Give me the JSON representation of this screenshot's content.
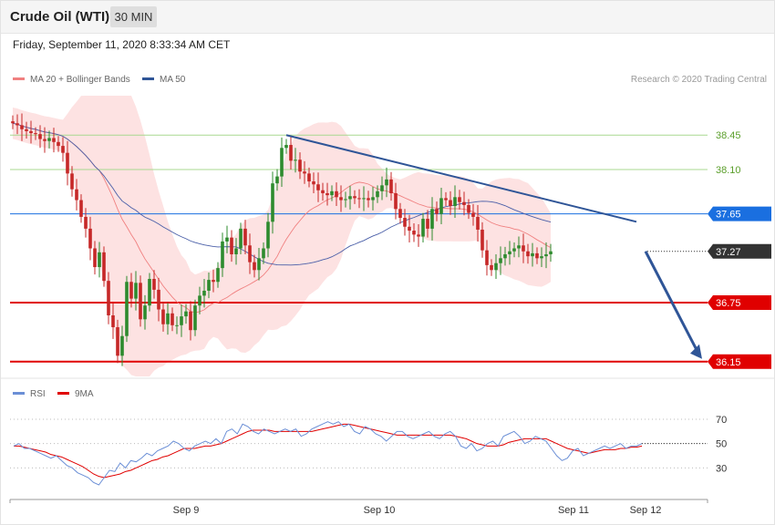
{
  "header": {
    "title": "Crude Oil (WTI)",
    "timeframe": "30 MIN",
    "timestamp": "Friday, September 11, 2020 8:33:34 AM CET"
  },
  "legend": {
    "ma20": "MA 20 + Bollinger Bands",
    "ma50": "MA 50",
    "credit": "Research © 2020 Trading Central",
    "rsi": "RSI",
    "ma9": "9MA"
  },
  "colors": {
    "bull": "#2e8b2e",
    "bear": "#c62828",
    "bollinger_fill": "#fde2e2",
    "ma20": "#f08080",
    "ma50": "#4a5fa8",
    "trendline": "#2f5597",
    "support": "#e00000",
    "pivot": "#1a6fe0",
    "resistance": "#a8d890",
    "last_price": "#333333",
    "rsi": "#6b8fd6",
    "rsi_ma": "#e00000"
  },
  "chart_data": [
    {
      "type": "candlestick",
      "title": "Crude Oil (WTI)",
      "timeframe": "30 MIN",
      "ylim": [
        36.0,
        38.85
      ],
      "x_ticks": [
        "Sep 9",
        "Sep 10",
        "Sep 11",
        "Sep 12"
      ],
      "last_price": 37.27,
      "levels": [
        {
          "label": "38.45",
          "value": 38.45,
          "kind": "resistance"
        },
        {
          "label": "38.10",
          "value": 38.1,
          "kind": "resistance"
        },
        {
          "label": "37.65",
          "value": 37.65,
          "kind": "pivot"
        },
        {
          "label": "37.27",
          "value": 37.27,
          "kind": "last"
        },
        {
          "label": "36.75",
          "value": 36.75,
          "kind": "support"
        },
        {
          "label": "36.15",
          "value": 36.15,
          "kind": "support"
        }
      ],
      "series": [
        {
          "name": "MA 20 + Bollinger Bands",
          "kind": "ma20_bollinger"
        },
        {
          "name": "MA 50",
          "kind": "ma50"
        }
      ],
      "closes": [
        38.57,
        38.55,
        38.51,
        38.49,
        38.47,
        38.46,
        38.41,
        38.39,
        38.42,
        38.38,
        38.34,
        38.27,
        38.06,
        37.9,
        37.79,
        37.62,
        37.5,
        37.3,
        37.11,
        37.26,
        36.97,
        36.62,
        36.5,
        36.21,
        36.41,
        36.96,
        36.79,
        36.95,
        36.58,
        36.72,
        36.99,
        36.88,
        36.68,
        36.53,
        36.64,
        36.52,
        36.52,
        36.61,
        36.66,
        36.47,
        36.72,
        36.82,
        36.87,
        36.98,
        36.96,
        37.1,
        37.37,
        37.41,
        37.24,
        37.3,
        37.5,
        37.33,
        37.16,
        37.08,
        37.2,
        37.3,
        37.57,
        37.96,
        38.03,
        38.32,
        38.35,
        38.19,
        38.2,
        38.08,
        38.06,
        37.98,
        37.95,
        37.89,
        37.86,
        37.84,
        37.88,
        37.82,
        37.79,
        37.8,
        37.83,
        37.81,
        37.8,
        37.81,
        37.79,
        37.82,
        37.88,
        37.94,
        38.0,
        37.86,
        37.7,
        37.61,
        37.52,
        37.48,
        37.44,
        37.42,
        37.6,
        37.5,
        37.7,
        37.65,
        37.81,
        37.79,
        37.73,
        37.82,
        37.77,
        37.74,
        37.66,
        37.62,
        37.49,
        37.28,
        37.13,
        37.08,
        37.15,
        37.2,
        37.24,
        37.27,
        37.3,
        37.33,
        37.27,
        37.22,
        37.25,
        37.2,
        37.22,
        37.24,
        37.27
      ]
    },
    {
      "type": "line",
      "name": "RSI",
      "ylim": [
        10,
        85
      ],
      "y_ticks": [
        30,
        50,
        70
      ],
      "x_ticks": [
        "Sep 9",
        "Sep 10",
        "Sep 11",
        "Sep 12"
      ],
      "series": [
        {
          "name": "RSI",
          "values": [
            48,
            50,
            46,
            46,
            44,
            42,
            40,
            38,
            40,
            36,
            32,
            30,
            26,
            24,
            22,
            18,
            16,
            22,
            28,
            27,
            34,
            30,
            36,
            35,
            38,
            42,
            40,
            44,
            46,
            48,
            52,
            50,
            46,
            44,
            48,
            50,
            52,
            50,
            54,
            50,
            60,
            62,
            58,
            66,
            64,
            60,
            58,
            62,
            60,
            58,
            60,
            62,
            60,
            62,
            56,
            58,
            62,
            64,
            66,
            68,
            66,
            68,
            64,
            66,
            60,
            58,
            64,
            62,
            58,
            56,
            52,
            56,
            60,
            60,
            56,
            54,
            56,
            58,
            60,
            56,
            54,
            58,
            60,
            56,
            48,
            46,
            50,
            44,
            46,
            50,
            52,
            48,
            56,
            58,
            60,
            56,
            50,
            52,
            56,
            54,
            52,
            46,
            40,
            36,
            38,
            44,
            46,
            40,
            42,
            44,
            46,
            48,
            46,
            48,
            50,
            46,
            48,
            48,
            50
          ]
        },
        {
          "name": "9MA",
          "values": [
            48,
            48,
            47,
            46,
            45,
            44,
            43,
            41,
            40,
            39,
            37,
            35,
            33,
            31,
            28,
            25,
            23,
            22,
            23,
            24,
            25,
            27,
            28,
            30,
            32,
            34,
            36,
            37,
            39,
            40,
            42,
            44,
            46,
            46,
            46,
            47,
            48,
            48,
            49,
            50,
            52,
            54,
            56,
            58,
            60,
            61,
            61,
            61,
            61,
            60,
            60,
            60,
            60,
            60,
            60,
            60,
            60,
            61,
            62,
            63,
            64,
            65,
            66,
            66,
            65,
            64,
            63,
            62,
            61,
            60,
            59,
            58,
            57,
            57,
            57,
            57,
            57,
            57,
            57,
            57,
            57,
            57,
            57,
            56,
            55,
            54,
            52,
            50,
            49,
            48,
            48,
            48,
            49,
            51,
            52,
            53,
            54,
            54,
            54,
            54,
            54,
            52,
            50,
            48,
            46,
            45,
            44,
            43,
            42,
            43,
            44,
            45,
            45,
            45,
            46,
            46,
            47,
            47,
            48
          ]
        }
      ]
    }
  ]
}
